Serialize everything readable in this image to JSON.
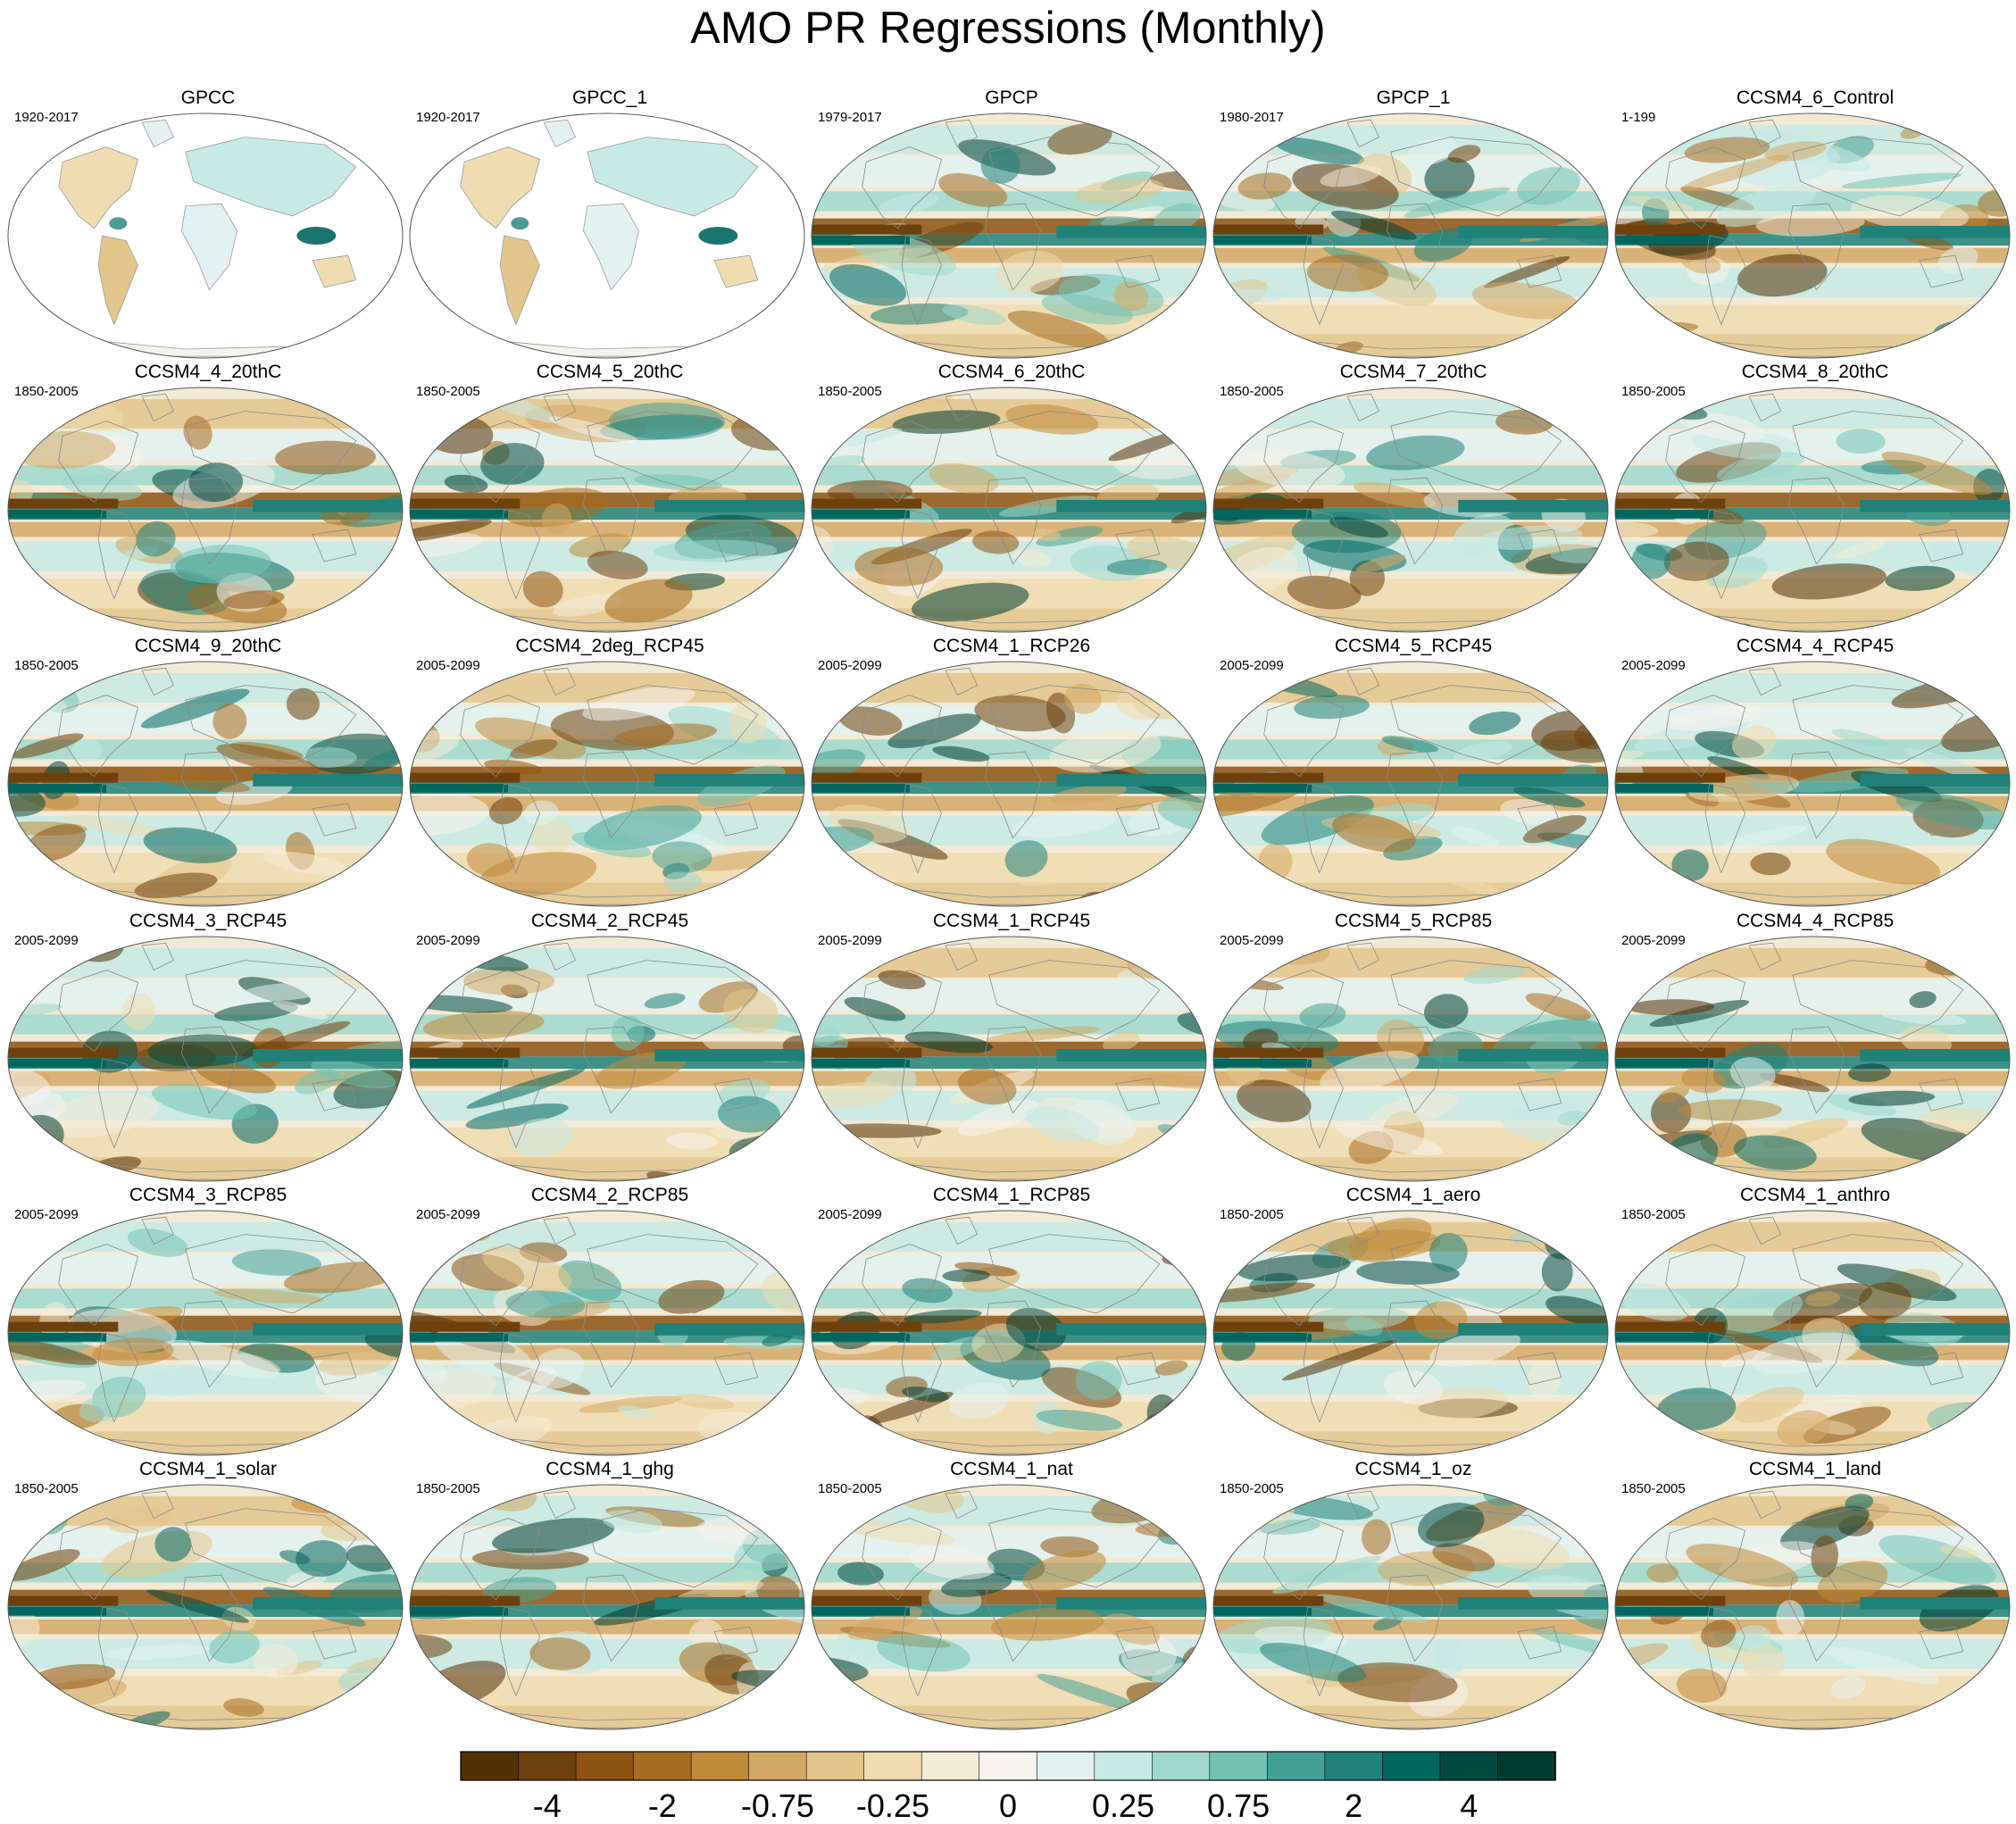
{
  "title": "AMO PR Regressions (Monthly)",
  "panels": [
    {
      "name": "GPCC",
      "period": "1920-2017",
      "type": "land"
    },
    {
      "name": "GPCC_1",
      "period": "1920-2017",
      "type": "land"
    },
    {
      "name": "GPCP",
      "period": "1979-2017",
      "type": "obs"
    },
    {
      "name": "GPCP_1",
      "period": "1980-2017",
      "type": "obs"
    },
    {
      "name": "CCSM4_6_Control",
      "period": "1-199",
      "type": "model"
    },
    {
      "name": "CCSM4_4_20thC",
      "period": "1850-2005",
      "type": "model"
    },
    {
      "name": "CCSM4_5_20thC",
      "period": "1850-2005",
      "type": "model"
    },
    {
      "name": "CCSM4_6_20thC",
      "period": "1850-2005",
      "type": "model"
    },
    {
      "name": "CCSM4_7_20thC",
      "period": "1850-2005",
      "type": "model"
    },
    {
      "name": "CCSM4_8_20thC",
      "period": "1850-2005",
      "type": "model"
    },
    {
      "name": "CCSM4_9_20thC",
      "period": "1850-2005",
      "type": "model"
    },
    {
      "name": "CCSM4_2deg_RCP45",
      "period": "2005-2099",
      "type": "model"
    },
    {
      "name": "CCSM4_1_RCP26",
      "period": "2005-2099",
      "type": "model"
    },
    {
      "name": "CCSM4_5_RCP45",
      "period": "2005-2099",
      "type": "model"
    },
    {
      "name": "CCSM4_4_RCP45",
      "period": "2005-2099",
      "type": "model"
    },
    {
      "name": "CCSM4_3_RCP45",
      "period": "2005-2099",
      "type": "model"
    },
    {
      "name": "CCSM4_2_RCP45",
      "period": "2005-2099",
      "type": "model"
    },
    {
      "name": "CCSM4_1_RCP45",
      "period": "2005-2099",
      "type": "model"
    },
    {
      "name": "CCSM4_5_RCP85",
      "period": "2005-2099",
      "type": "model"
    },
    {
      "name": "CCSM4_4_RCP85",
      "period": "2005-2099",
      "type": "model"
    },
    {
      "name": "CCSM4_3_RCP85",
      "period": "2005-2099",
      "type": "model"
    },
    {
      "name": "CCSM4_2_RCP85",
      "period": "2005-2099",
      "type": "model"
    },
    {
      "name": "CCSM4_1_RCP85",
      "period": "2005-2099",
      "type": "model"
    },
    {
      "name": "CCSM4_1_aero",
      "period": "1850-2005",
      "type": "model"
    },
    {
      "name": "CCSM4_1_anthro",
      "period": "1850-2005",
      "type": "model"
    },
    {
      "name": "CCSM4_1_solar",
      "period": "1850-2005",
      "type": "model"
    },
    {
      "name": "CCSM4_1_ghg",
      "period": "1850-2005",
      "type": "model"
    },
    {
      "name": "CCSM4_1_nat",
      "period": "1850-2005",
      "type": "model"
    },
    {
      "name": "CCSM4_1_oz",
      "period": "1850-2005",
      "type": "model"
    },
    {
      "name": "CCSM4_1_land",
      "period": "1850-2005",
      "type": "model"
    }
  ],
  "colorbar": {
    "colors": [
      "#543005",
      "#6e400b",
      "#8c5313",
      "#a66c1f",
      "#bf8a3a",
      "#d3a865",
      "#e3c68c",
      "#efdcb0",
      "#f5ecd7",
      "#f5f3ec",
      "#e3f2f0",
      "#c7eae5",
      "#9fd9ce",
      "#74c2b4",
      "#45a196",
      "#1f8178",
      "#01665e",
      "#00493f",
      "#003c30"
    ],
    "labels": [
      "-4",
      "-2",
      "-0.75",
      "-0.25",
      "0",
      "0.25",
      "0.75",
      "2",
      "4"
    ]
  }
}
